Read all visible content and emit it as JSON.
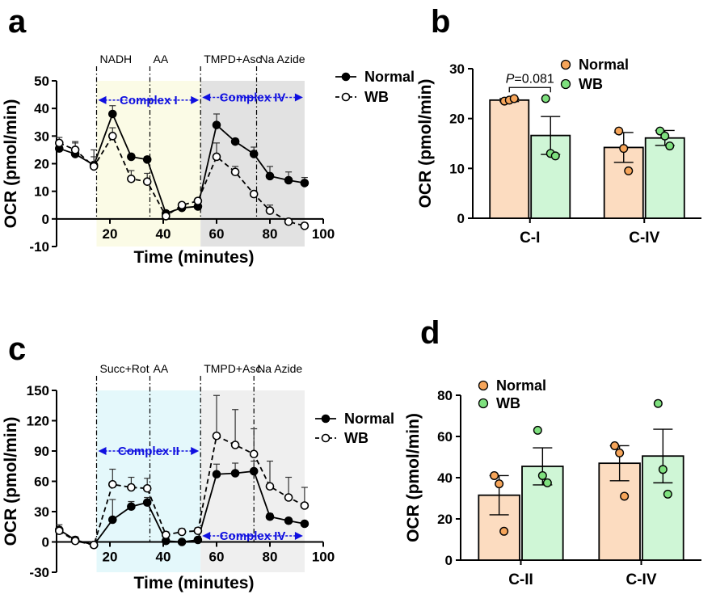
{
  "chart_data": [
    {
      "panel": "a",
      "type": "line",
      "xlabel": "Time (minutes)",
      "ylabel": "OCR (pmol/min)",
      "xlim": [
        0,
        100
      ],
      "ylim": [
        -10,
        50
      ],
      "xticks": [
        20,
        40,
        60,
        80,
        100
      ],
      "yticks": [
        -10,
        0,
        10,
        20,
        30,
        40,
        50
      ],
      "events": [
        {
          "label": "NADH",
          "x": 15
        },
        {
          "label": "AA",
          "x": 35
        },
        {
          "label": "TMPD+Asc",
          "x": 54
        },
        {
          "label": "Na Azide",
          "x": 75
        }
      ],
      "regions": [
        {
          "label": "Complex I",
          "x0": 15,
          "x1": 54,
          "color": "#fbfbe6",
          "arrow_y": 43
        },
        {
          "label": "Complex IV",
          "x0": 54,
          "x1": 93,
          "color": "#e2e2e2",
          "arrow_y": 44
        }
      ],
      "series": [
        {
          "name": "Normal",
          "marker": "filled",
          "line": "solid",
          "x": [
            1,
            7,
            14,
            21,
            28,
            34,
            41,
            47,
            53,
            60,
            67,
            74,
            80,
            87,
            93
          ],
          "y": [
            25.5,
            23.5,
            19.5,
            38,
            22.5,
            21.5,
            2,
            4,
            4.5,
            34,
            28,
            23.5,
            15.5,
            14,
            13
          ],
          "err": [
            2.5,
            4,
            3,
            3,
            1,
            1,
            0.5,
            1.5,
            1,
            4,
            1,
            2.5,
            3.5,
            3,
            2
          ]
        },
        {
          "name": "WB",
          "marker": "open",
          "line": "dashed",
          "x": [
            1,
            7,
            14,
            21,
            28,
            34,
            41,
            47,
            53,
            60,
            67,
            74,
            80,
            87,
            93
          ],
          "y": [
            27.5,
            25,
            19,
            30,
            14.5,
            13.5,
            1,
            5,
            6.5,
            22.5,
            17,
            9,
            3,
            -1,
            -2.5
          ],
          "err": [
            2,
            3,
            6,
            3,
            3,
            3,
            0.5,
            0.5,
            1,
            5,
            2,
            1,
            2,
            1,
            1
          ]
        }
      ]
    },
    {
      "panel": "b",
      "type": "bar",
      "ylabel": "OCR (pmol/min)",
      "ylim": [
        0,
        30
      ],
      "yticks": [
        0,
        10,
        20,
        30
      ],
      "categories": [
        "C-I",
        "C-IV"
      ],
      "annotation": {
        "p_label": "P",
        "p_value": "=0.081"
      },
      "series": [
        {
          "name": "Normal",
          "color": "#fcdcc0",
          "dot_color": "#f6a55a",
          "values": [
            23.7,
            14.2
          ],
          "err": [
            0.3,
            3
          ],
          "points": [
            [
              23.5,
              23.7,
              24
            ],
            [
              17.5,
              14,
              9.5
            ]
          ]
        },
        {
          "name": "WB",
          "color": "#cff6d6",
          "dot_color": "#7ee07e",
          "values": [
            16.6,
            16.1
          ],
          "err": [
            3.8,
            1.5
          ],
          "points": [
            [
              24,
              13,
              12.5
            ],
            [
              17.5,
              16.5,
              14.5
            ]
          ]
        }
      ]
    },
    {
      "panel": "c",
      "type": "line",
      "xlabel": "Time (minutes)",
      "ylabel": "OCR (pmol/min)",
      "xlim": [
        0,
        100
      ],
      "ylim": [
        -30,
        150
      ],
      "xticks": [
        20,
        40,
        60,
        80,
        100
      ],
      "yticks": [
        -30,
        0,
        30,
        60,
        90,
        120,
        150
      ],
      "events": [
        {
          "label": "Succ+Rot",
          "x": 15
        },
        {
          "label": "AA",
          "x": 35
        },
        {
          "label": "TMPD+Asc",
          "x": 54
        },
        {
          "label": "Na Azide",
          "x": 74
        }
      ],
      "regions": [
        {
          "label": "Complex II",
          "x0": 15,
          "x1": 54,
          "color": "#e4f8fb",
          "arrow_y": 90
        },
        {
          "label": "Complex IV",
          "x0": 54,
          "x1": 93,
          "color": "#efefef",
          "arrow_y": 6
        }
      ],
      "series": [
        {
          "name": "Normal",
          "marker": "filled",
          "line": "solid",
          "x": [
            1,
            7,
            14,
            21,
            28,
            34,
            41,
            47,
            53,
            60,
            67,
            74,
            80,
            87,
            93
          ],
          "y": [
            12,
            2,
            -3,
            22,
            35,
            39,
            1,
            0,
            2,
            67,
            68,
            70,
            25,
            21,
            18
          ],
          "err": [
            5,
            3,
            3,
            20,
            5,
            5,
            1,
            1,
            1,
            10,
            10,
            10,
            3,
            2,
            1
          ]
        },
        {
          "name": "WB",
          "marker": "open",
          "line": "dashed",
          "x": [
            1,
            7,
            14,
            21,
            28,
            34,
            41,
            47,
            53,
            60,
            67,
            74,
            80,
            87,
            93
          ],
          "y": [
            11,
            1,
            -3,
            57,
            54,
            53,
            7,
            10,
            11,
            105,
            96,
            87,
            55,
            44,
            36
          ],
          "err": [
            3,
            3,
            3,
            15,
            10,
            10,
            3,
            3,
            3,
            40,
            35,
            25,
            25,
            20,
            18
          ]
        }
      ]
    },
    {
      "panel": "d",
      "type": "bar",
      "ylabel": "OCR (pmol/min)",
      "ylim": [
        0,
        80
      ],
      "yticks": [
        0,
        20,
        40,
        60,
        80
      ],
      "categories": [
        "C-II",
        "C-IV"
      ],
      "series": [
        {
          "name": "Normal",
          "color": "#fcdcc0",
          "dot_color": "#f6a55a",
          "values": [
            31.5,
            47
          ],
          "err": [
            9.5,
            8.5
          ],
          "points": [
            [
              41,
              37,
              14
            ],
            [
              55.5,
              52,
              31
            ]
          ]
        },
        {
          "name": "WB",
          "color": "#cff6d6",
          "dot_color": "#7ee07e",
          "values": [
            45.5,
            50.5
          ],
          "err": [
            9,
            13
          ],
          "points": [
            [
              63,
              41,
              37.5
            ],
            [
              76,
              44,
              32
            ]
          ]
        }
      ]
    }
  ]
}
